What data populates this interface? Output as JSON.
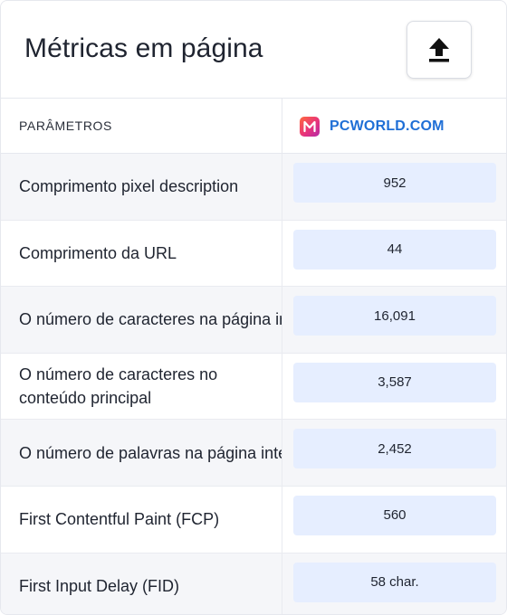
{
  "header": {
    "title": "Métricas em página",
    "export_icon": "upload-arrow-icon"
  },
  "table": {
    "param_header": "PARÂMETROS",
    "site": {
      "logo_icon": "m-logo-icon",
      "logo_colors": [
        "#ff6a3d",
        "#e8337a",
        "#b429a8"
      ],
      "name": "PCWORLD.COM",
      "name_color": "#1f6fd6"
    },
    "rows": [
      {
        "label": "Comprimento pixel description",
        "value": "952"
      },
      {
        "label": "Comprimento da URL",
        "value": "44"
      },
      {
        "label": "O número de caracteres na página inteira",
        "value": "16,091"
      },
      {
        "label": "O número de caracteres no conteúdo principal",
        "value": "3,587"
      },
      {
        "label": "O número de palavras na página inteira",
        "value": "2,452"
      },
      {
        "label": "First Contentful Paint (FCP)",
        "value": "560"
      },
      {
        "label": "First Input Delay (FID)",
        "value": "58 char."
      }
    ]
  },
  "colors": {
    "value_cell_bg": "#e6eeff",
    "alt_row_bg": "#f5f6f9",
    "border": "#e6e8ee"
  }
}
